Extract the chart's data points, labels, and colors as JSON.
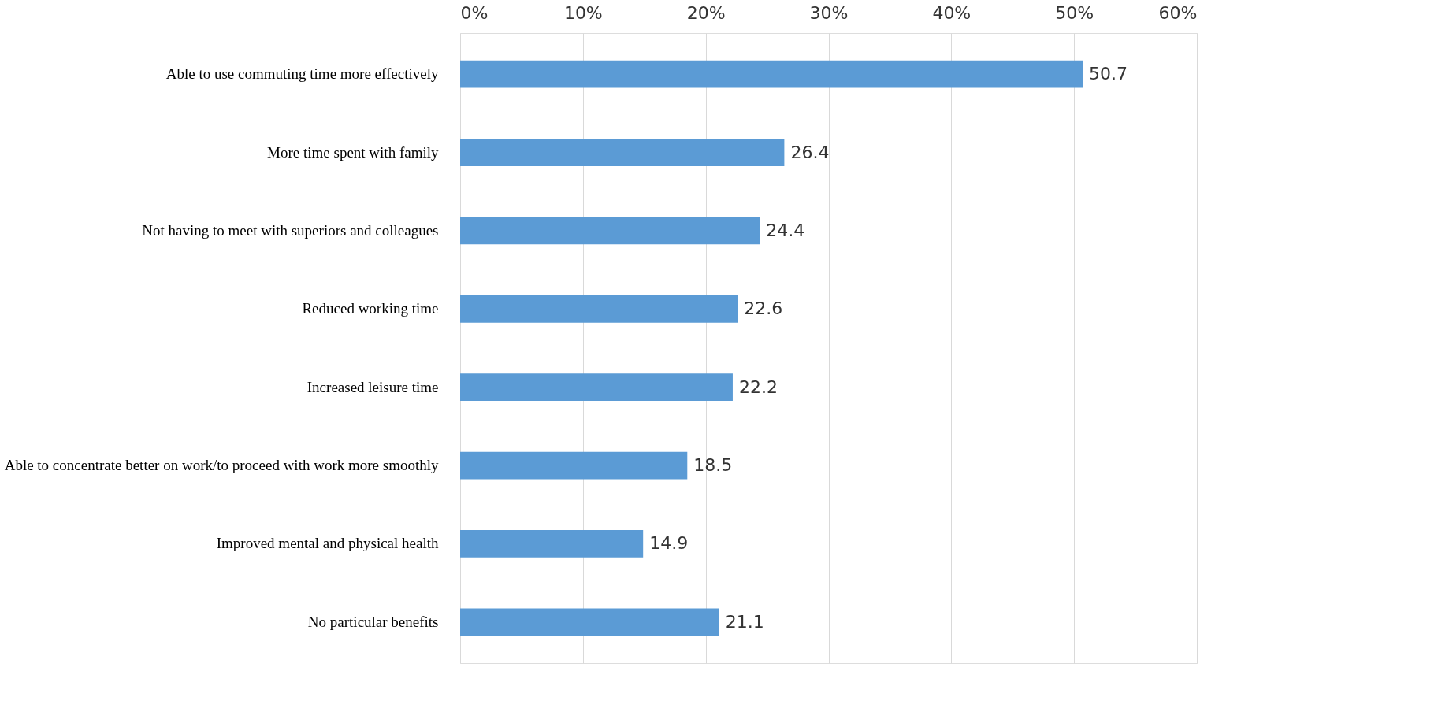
{
  "chart_data": {
    "type": "bar",
    "orientation": "horizontal",
    "categories": [
      "Able to use commuting time more effectively",
      "More time spent with family",
      "Not having to meet with superiors and colleagues",
      "Reduced working time",
      "Increased leisure time",
      "Able to concentrate better on work/to proceed with work more smoothly",
      "Improved mental and physical health",
      "No particular benefits"
    ],
    "values": [
      50.7,
      26.4,
      24.4,
      22.6,
      22.2,
      18.5,
      14.9,
      21.1
    ],
    "color": "#5b9bd5",
    "xlim": [
      0,
      60
    ],
    "xticks": [
      {
        "value": 0,
        "label": "0%"
      },
      {
        "value": 10,
        "label": "10%"
      },
      {
        "value": 20,
        "label": "20%"
      },
      {
        "value": 30,
        "label": "30%"
      },
      {
        "value": 40,
        "label": "40%"
      },
      {
        "value": 50,
        "label": "50%"
      },
      {
        "value": 60,
        "label": "60%"
      }
    ],
    "grid": "x",
    "data_labels": true
  }
}
